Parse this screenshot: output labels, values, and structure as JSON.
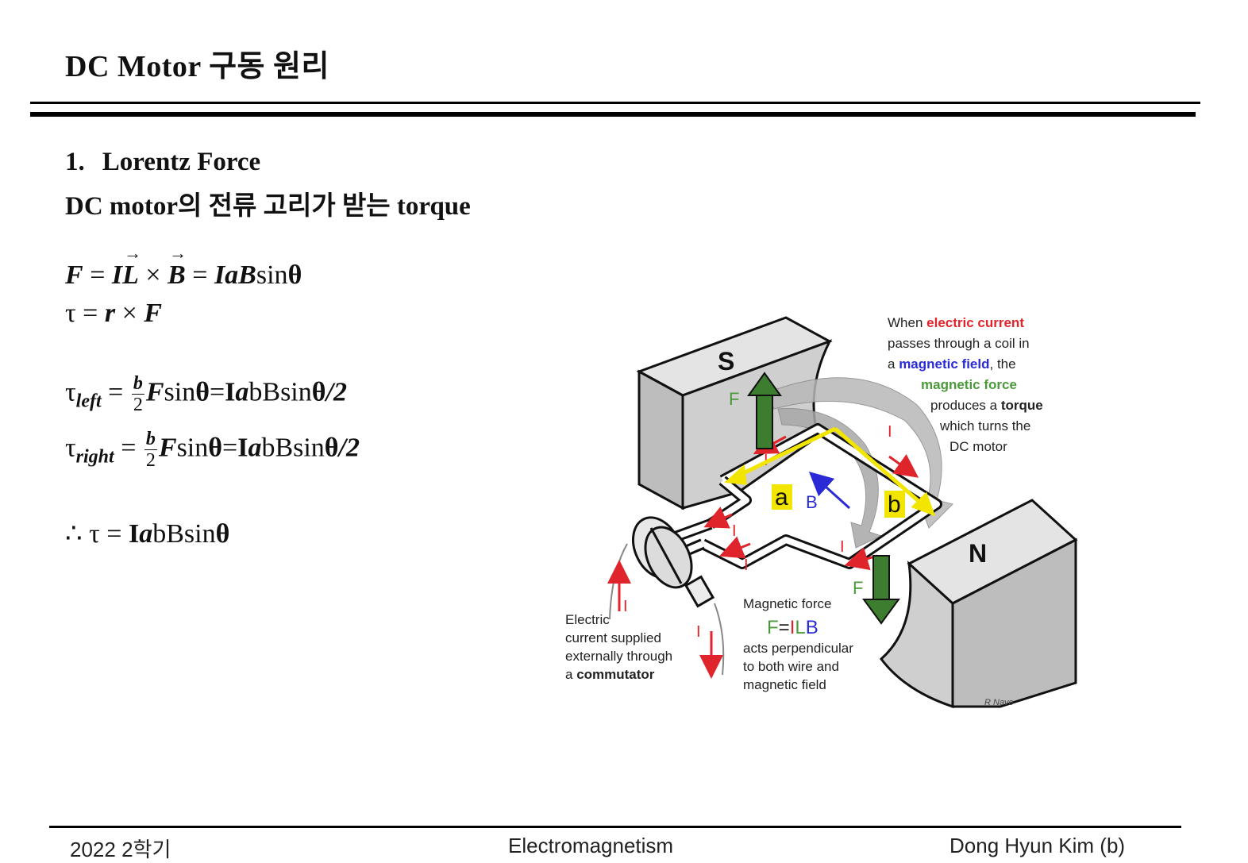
{
  "slide": {
    "title": "DC Motor 구동 원리",
    "section_number": "1.",
    "section_title": "Lorentz Force",
    "subtitle": "DC motor의 전류 고리가 받는 torque"
  },
  "equations": {
    "eq1": {
      "F": "F",
      "eq": " = ",
      "I": "I",
      "L": "L",
      "cross": " × ",
      "B": "B",
      "eq2": " = ",
      "IaB": "IaB",
      "sin": "sin",
      "theta": "θ"
    },
    "eq2": {
      "tau": "τ",
      "eq": " = ",
      "r": "r",
      "cross": " × ",
      "F": "F"
    },
    "eq3": {
      "tau": "τ",
      "sub": "left",
      "eq": " = ",
      "num": "b",
      "den": "2",
      "F": "F",
      "sin": "sin",
      "theta": "θ",
      "eq2": "=",
      "I": "I",
      "a": "a",
      "bB": "bBsin",
      "theta2": "θ",
      "rest": "/2"
    },
    "eq4": {
      "tau": "τ",
      "sub": "right",
      "eq": " = ",
      "num": "b",
      "den": "2",
      "F": "F",
      "sin": "sin",
      "theta": "θ",
      "eq2": "=",
      "I": "I",
      "a": "a",
      "bB": "bBsin",
      "theta2": "θ",
      "rest": "/2"
    },
    "eq5": {
      "therefore": "∴ τ = ",
      "I": "I",
      "a": "a",
      "bB": "bBsin",
      "theta": "θ"
    }
  },
  "diagram": {
    "pole_s": "S",
    "pole_n": "N",
    "label_a": "a",
    "label_b": "b",
    "label_B": "B",
    "label_F": "F",
    "label_I": "I",
    "caption_top": {
      "l1a": "When ",
      "l1b": "electric current",
      "l2": "passes through a  coil in",
      "l3a": "a ",
      "l3b": "magnetic field",
      "l3c": ", the",
      "l4": "magnetic force",
      "l5a": "produces a ",
      "l5b": "torque",
      "l6": "which turns the",
      "l7": "DC motor"
    },
    "caption_left": {
      "l1": "Electric",
      "l2": "current supplied",
      "l3": "externally through",
      "l4a": "a ",
      "l4b": "commutator"
    },
    "caption_mid": {
      "l1": "Magnetic force",
      "f": "F",
      "eq": "=",
      "i": "I",
      "l": "L",
      "b": "B",
      "l3": "acts perpendicular",
      "l4": "to both wire and",
      "l5": "magnetic field"
    },
    "credit": "R Nave"
  },
  "footer": {
    "left": "2022 2학기",
    "center": "Electromagnetism",
    "right": "Dong Hyun Kim (b)"
  },
  "colors": {
    "red": "#e0242b",
    "blue": "#2a2bd6",
    "green": "#4a9a3a",
    "yellow": "#f2e600",
    "magnet": "#cfcfcf"
  }
}
